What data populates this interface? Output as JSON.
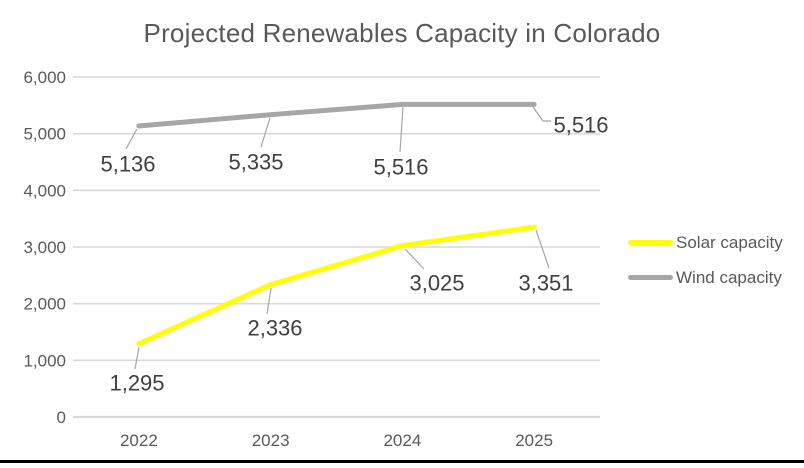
{
  "chart_data": {
    "type": "line",
    "title": "Projected Renewables Capacity in Colorado",
    "categories": [
      "2022",
      "2023",
      "2024",
      "2025"
    ],
    "series": [
      {
        "name": "Solar capacity",
        "color": "#FFFF00",
        "values": [
          1295,
          2336,
          3025,
          3351
        ],
        "labels": [
          "1,295",
          "2,336",
          "3,025",
          "3,351"
        ]
      },
      {
        "name": "Wind capacity",
        "color": "#A6A6A6",
        "values": [
          5136,
          5335,
          5516,
          5516
        ],
        "labels": [
          "5,136",
          "5,335",
          "5,516",
          "5,516"
        ]
      }
    ],
    "y_axis": {
      "min": 0,
      "max": 6000,
      "step": 1000,
      "tick_labels": [
        "0",
        "1,000",
        "2,000",
        "3,000",
        "4,000",
        "5,000",
        "6,000"
      ]
    },
    "grid": true,
    "legend_position": "right"
  },
  "colors": {
    "title_text": "#595959",
    "axis_text": "#595959",
    "data_label_text": "#404040",
    "gridline": "#D9D9D9",
    "leader_line": "#A6A6A6",
    "solar_line": "#FFFF00",
    "wind_line": "#A6A6A6",
    "bottom_bar": "#000000"
  }
}
